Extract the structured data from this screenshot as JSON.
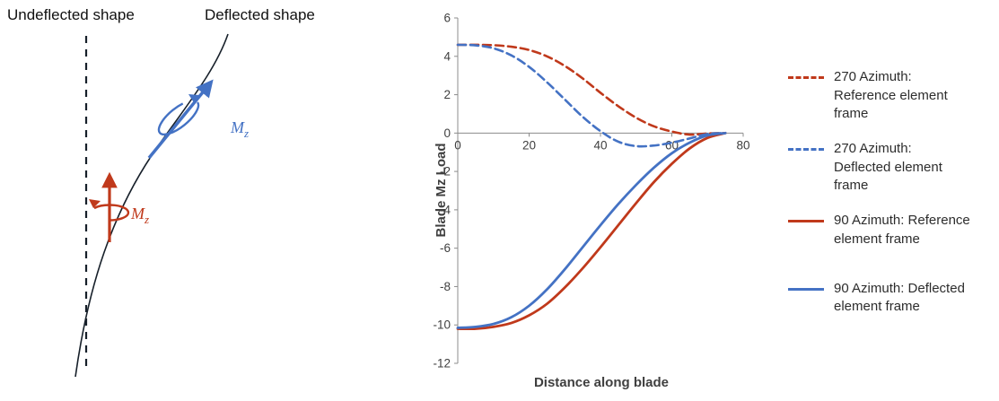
{
  "colors": {
    "blue": "#4472C4",
    "red": "#C0391B",
    "curve": "#17202A",
    "axis": "#8C8C8C",
    "tick_text": "#3F3F3F"
  },
  "diagram": {
    "undeflected_label": "Undeflected shape",
    "deflected_label": "Deflected shape",
    "moment_symbol": "M",
    "moment_subscript": "z"
  },
  "chart_data": {
    "type": "line",
    "title": "",
    "xlabel": "Distance along blade",
    "ylabel": "Blade Mz Load",
    "xlim": [
      0,
      80
    ],
    "ylim": [
      -12,
      6
    ],
    "x_ticks": [
      0,
      20,
      40,
      60,
      80
    ],
    "y_ticks": [
      6,
      4,
      2,
      0,
      -2,
      -4,
      -6,
      -8,
      -10,
      -12
    ],
    "grid": false,
    "legend_position": "right",
    "x": [
      0,
      5,
      10,
      15,
      20,
      25,
      30,
      35,
      40,
      45,
      50,
      55,
      60,
      65,
      70,
      75
    ],
    "series": [
      {
        "name": "270 Azimuth: Reference element frame",
        "legend_label": "270 Azimuth:\nReference element\nframe",
        "color": "#C0391B",
        "dash": true,
        "values": [
          4.6,
          4.6,
          4.58,
          4.5,
          4.33,
          4.0,
          3.5,
          2.85,
          2.1,
          1.4,
          0.8,
          0.35,
          0.08,
          -0.08,
          -0.02,
          0
        ]
      },
      {
        "name": "270 Azimuth: Deflected element frame",
        "legend_label": "270 Azimuth:\nDeflected element\nframe",
        "color": "#4472C4",
        "dash": true,
        "values": [
          4.6,
          4.57,
          4.42,
          4.05,
          3.45,
          2.65,
          1.75,
          0.85,
          0.1,
          -0.45,
          -0.68,
          -0.65,
          -0.5,
          -0.28,
          -0.05,
          0
        ]
      },
      {
        "name": "90 Azimuth: Reference element frame",
        "legend_label": "90 Azimuth: Reference\nelement frame",
        "color": "#C0391B",
        "dash": false,
        "values": [
          -10.2,
          -10.2,
          -10.1,
          -9.9,
          -9.5,
          -8.9,
          -8.05,
          -7.05,
          -5.95,
          -4.8,
          -3.65,
          -2.55,
          -1.6,
          -0.8,
          -0.25,
          0
        ]
      },
      {
        "name": "90 Azimuth: Deflected element frame",
        "legend_label": "90 Azimuth: Deflected\nelement frame",
        "color": "#4472C4",
        "dash": false,
        "values": [
          -10.15,
          -10.1,
          -9.95,
          -9.6,
          -9.0,
          -8.15,
          -7.1,
          -5.95,
          -4.8,
          -3.7,
          -2.7,
          -1.8,
          -1.05,
          -0.5,
          -0.12,
          0
        ]
      }
    ]
  }
}
